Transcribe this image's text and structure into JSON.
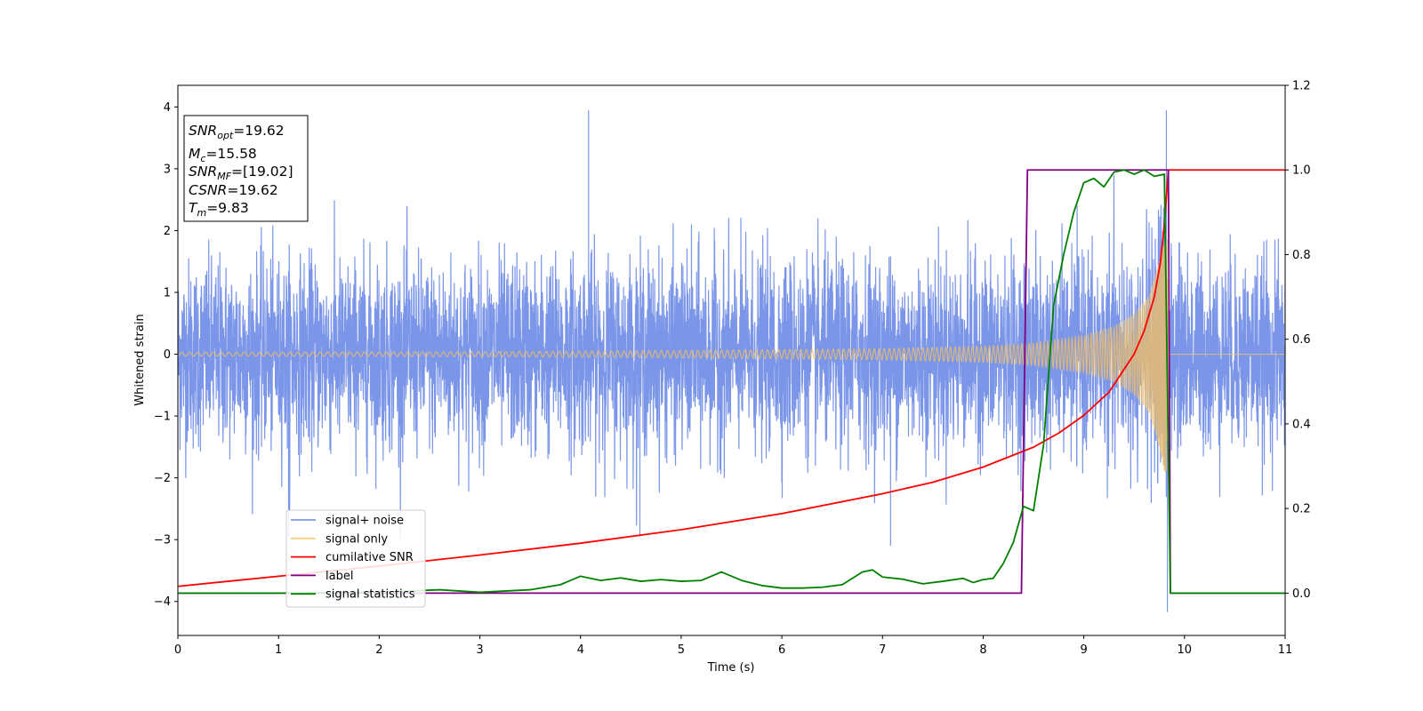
{
  "chart_data": {
    "type": "line",
    "xlabel": "Time (s)",
    "ylabel": "Whitened strain",
    "xlim": [
      0,
      11
    ],
    "ylim_left": [
      -4.55,
      4.35
    ],
    "ylim_right": [
      -0.1,
      1.2
    ],
    "x_ticks": [
      0,
      1,
      2,
      3,
      4,
      5,
      6,
      7,
      8,
      9,
      10,
      11
    ],
    "y_ticks_left": [
      -4,
      -3,
      -2,
      -1,
      0,
      1,
      2,
      3,
      4
    ],
    "y_ticks_right": [
      0.0,
      0.2,
      0.4,
      0.6,
      0.8,
      1.0,
      1.2
    ],
    "grid": false,
    "legend_position": "lower-left",
    "annotation_box": {
      "position": "top-left",
      "lines": [
        {
          "var": "SNR",
          "sub": "opt",
          "value": "=19.62"
        },
        {
          "var": "M",
          "sub": "c",
          "value": "=15.58"
        },
        {
          "var": "SNR",
          "sub": "MF",
          "value": "=[19.02]"
        },
        {
          "var": "CSNR",
          "sub": "",
          "value": "=19.62"
        },
        {
          "var": "T",
          "sub": "m",
          "value": "=9.83"
        }
      ]
    },
    "series": [
      {
        "name": "signal+ noise",
        "color": "#7b96e8",
        "axis": "left",
        "description": "whitened noise plus signal",
        "noise_sigma": 0.75,
        "spikes": [
          [
            4.08,
            3.95
          ],
          [
            9.82,
            3.95
          ],
          [
            9.83,
            -4.17
          ],
          [
            7.08,
            -3.1
          ],
          [
            1.1,
            -2.95
          ],
          [
            4.59,
            -2.95
          ]
        ]
      },
      {
        "name": "signal only",
        "color": "#f5c062",
        "axis": "left",
        "amplitude_points": [
          [
            0,
            0.03
          ],
          [
            3,
            0.04
          ],
          [
            5,
            0.06
          ],
          [
            7,
            0.09
          ],
          [
            8,
            0.13
          ],
          [
            8.5,
            0.18
          ],
          [
            9,
            0.3
          ],
          [
            9.3,
            0.45
          ],
          [
            9.5,
            0.65
          ],
          [
            9.65,
            0.95
          ],
          [
            9.75,
            1.5
          ],
          [
            9.82,
            2.05
          ],
          [
            9.85,
            0.0
          ]
        ],
        "end_time": 9.85
      },
      {
        "name": "cumilative SNR",
        "color": "#ff0000",
        "axis": "right",
        "x": [
          0,
          1,
          2,
          3,
          4,
          5,
          6,
          7,
          7.5,
          8,
          8.5,
          8.75,
          9,
          9.25,
          9.5,
          9.6,
          9.7,
          9.76,
          9.8,
          9.84,
          10,
          11
        ],
        "y": [
          0.016,
          0.04,
          0.064,
          0.09,
          0.118,
          0.15,
          0.188,
          0.235,
          0.262,
          0.298,
          0.345,
          0.378,
          0.42,
          0.475,
          0.565,
          0.62,
          0.7,
          0.78,
          0.87,
          1.0,
          1.0,
          1.0
        ]
      },
      {
        "name": "label",
        "color": "#800080",
        "axis": "right",
        "x": [
          0,
          8.38,
          8.44,
          9.84,
          9.86,
          11
        ],
        "y": [
          0,
          0,
          1,
          1,
          0,
          0
        ]
      },
      {
        "name": "signal statistics",
        "color": "#008000",
        "axis": "right",
        "x": [
          0,
          1,
          2,
          2.6,
          3,
          3.5,
          3.8,
          4.0,
          4.2,
          4.4,
          4.6,
          4.8,
          5.0,
          5.2,
          5.4,
          5.6,
          5.8,
          6.0,
          6.2,
          6.4,
          6.6,
          6.8,
          6.9,
          7.0,
          7.2,
          7.4,
          7.6,
          7.8,
          7.9,
          8.0,
          8.1,
          8.2,
          8.3,
          8.4,
          8.5,
          8.6,
          8.7,
          8.8,
          8.9,
          9.0,
          9.1,
          9.2,
          9.3,
          9.4,
          9.5,
          9.6,
          9.7,
          9.8,
          9.86,
          9.9,
          11
        ],
        "y": [
          0.0,
          0.0,
          0.002,
          0.008,
          0.002,
          0.008,
          0.02,
          0.04,
          0.03,
          0.036,
          0.028,
          0.032,
          0.028,
          0.03,
          0.05,
          0.03,
          0.018,
          0.012,
          0.012,
          0.014,
          0.02,
          0.05,
          0.055,
          0.038,
          0.033,
          0.022,
          0.028,
          0.035,
          0.025,
          0.032,
          0.035,
          0.07,
          0.12,
          0.205,
          0.195,
          0.35,
          0.68,
          0.8,
          0.9,
          0.97,
          0.98,
          0.96,
          0.995,
          1.0,
          0.99,
          1.0,
          0.985,
          0.99,
          0.0,
          0.0,
          0.0
        ]
      }
    ]
  }
}
